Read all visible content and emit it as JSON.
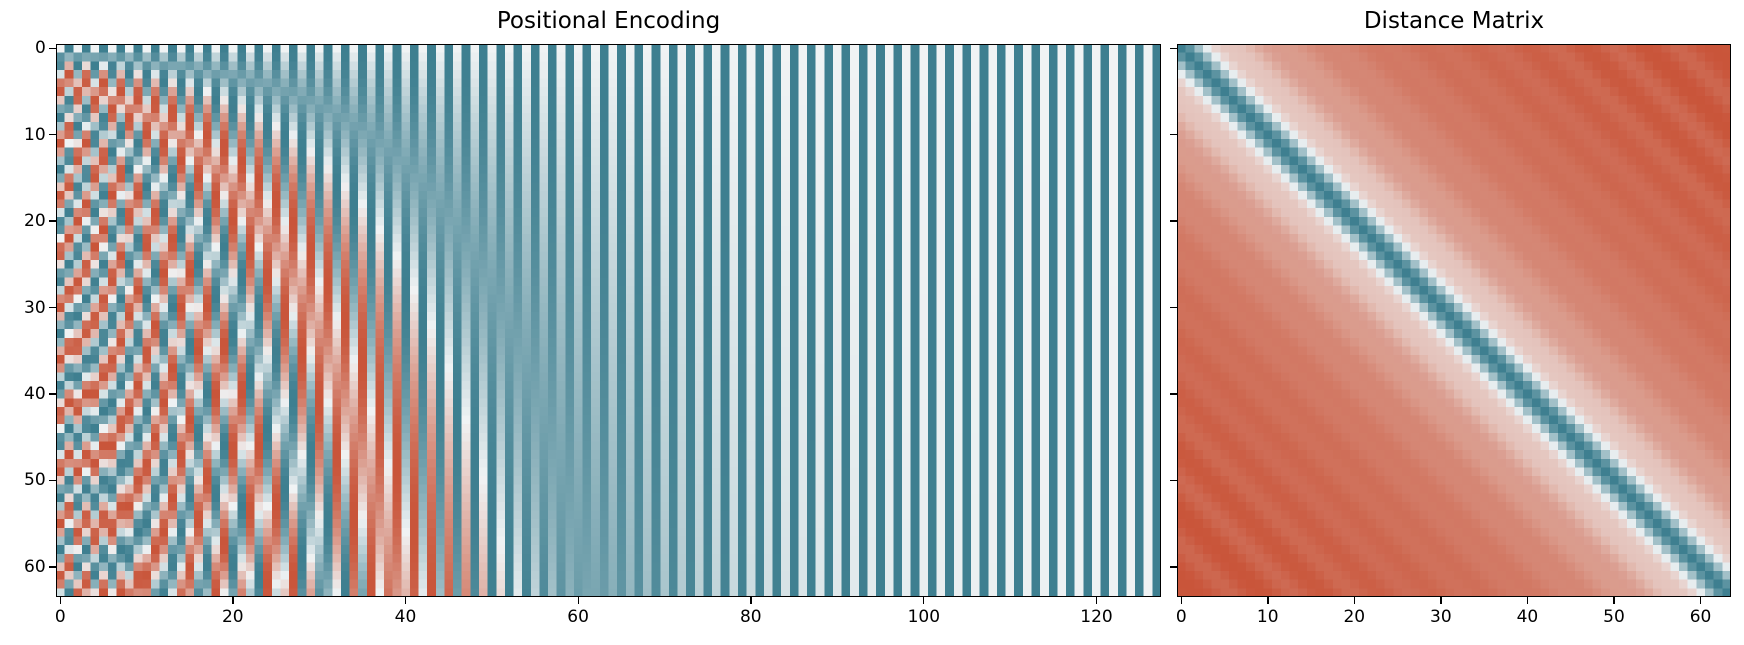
{
  "chart_data": [
    {
      "type": "heatmap",
      "title": "Positional Encoding",
      "xlabel": "",
      "ylabel": "",
      "rows": 64,
      "cols": 128,
      "xlim": [
        -0.5,
        127.5
      ],
      "ylim": [
        63.5,
        -0.5
      ],
      "x_ticks": [
        0,
        20,
        40,
        60,
        80,
        100,
        120
      ],
      "y_ticks": [
        0,
        10,
        20,
        30,
        40,
        50,
        60
      ],
      "value_range": [
        -1,
        1
      ],
      "formula": "PE[pos,2i]=sin(pos/10000^(2i/128)); PE[pos,2i+1]=cos(pos/10000^(2i/128))",
      "colormap": {
        "low": "#c9553a",
        "mid": "#f0f3f4",
        "high": "#3e7f90"
      }
    },
    {
      "type": "heatmap",
      "title": "Distance Matrix",
      "xlabel": "",
      "ylabel": "",
      "rows": 64,
      "cols": 64,
      "xlim": [
        -0.5,
        63.5
      ],
      "ylim": [
        63.5,
        -0.5
      ],
      "x_ticks": [
        0,
        10,
        20,
        30,
        40,
        50,
        60
      ],
      "y_ticks": [
        0,
        10,
        20,
        30,
        40,
        50,
        60
      ],
      "value_range": [
        0,
        1
      ],
      "formula": "dot-product similarity between positional encodings of positions i and j",
      "colormap": {
        "low": "#c9553a",
        "mid": "#f0f3f4",
        "high": "#3e7f90"
      }
    }
  ]
}
